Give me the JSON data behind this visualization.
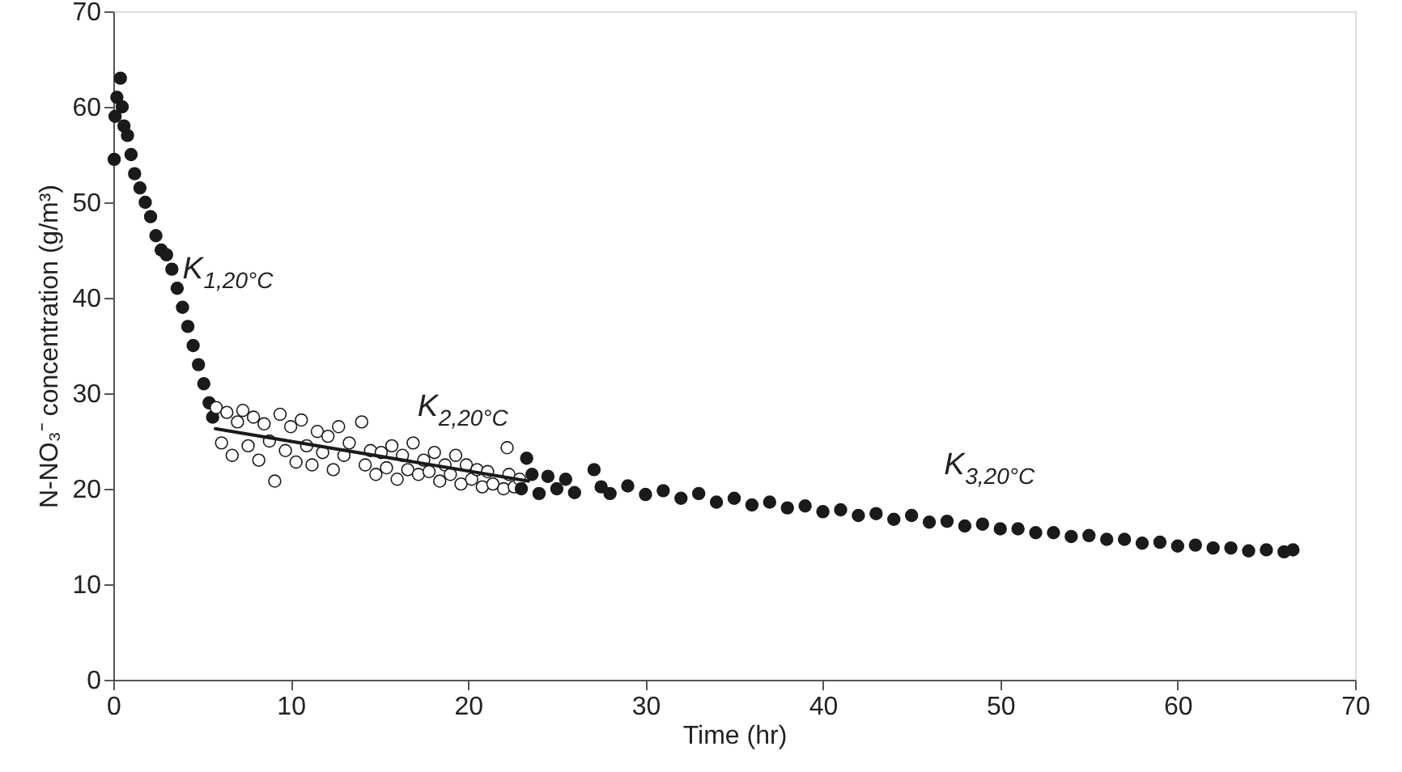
{
  "chart_data": {
    "type": "scatter",
    "xlabel": "Time (hr)",
    "ylabel": "N-NO₃⁻ concentration (g/m³)",
    "xlim": [
      0,
      70
    ],
    "ylim": [
      0,
      70
    ],
    "xticks": [
      0,
      10,
      20,
      30,
      40,
      50,
      60,
      70
    ],
    "yticks": [
      0,
      10,
      20,
      30,
      40,
      50,
      60,
      70
    ],
    "grid": false,
    "marker": "circle",
    "annotations": [
      {
        "text": "K$_{1,20°C}$",
        "x": 3.9,
        "y": 42
      },
      "K$_{2,20°C}$",
      "K$_{3,20°C}$"
    ],
    "series": [
      {
        "color": "#1a1a1a",
        "x": [
          0.05,
          0.1,
          0.2,
          0.3,
          0.4,
          0.5,
          0.6,
          0.8,
          1.0,
          1.2,
          1.5,
          1.8,
          2.1,
          2.4,
          2.7,
          3.0,
          3.3,
          3.6,
          3.9,
          4.2,
          4.5,
          4.8,
          5.1,
          5.4,
          5.6
        ],
        "values": [
          54.5,
          59,
          61,
          null,
          63,
          60,
          58,
          57,
          55,
          53,
          51.5,
          50,
          48.5,
          46.5,
          45,
          44.5,
          43,
          41,
          39,
          37,
          35,
          33,
          31,
          29,
          27.5
        ]
      },
      {
        "color": "#ffffff",
        "x": [
          5.8,
          6.1,
          6.4,
          6.7,
          7.0,
          7.3,
          7.6,
          7.9,
          8.2,
          8.5,
          8.8,
          9.1,
          9.4,
          9.7,
          10.0,
          10.3,
          10.6,
          10.9,
          11.2,
          11.5,
          11.8,
          12.1,
          12.4,
          12.7,
          13.0,
          13.3,
          14.0,
          14.2,
          14.5,
          14.8,
          15.1,
          15.4,
          15.7,
          16.0,
          16.3,
          16.6,
          16.9,
          17.2,
          17.5,
          17.8,
          18.1,
          18.4,
          18.7,
          19.0,
          19.3,
          19.6,
          19.9,
          20.2,
          20.5,
          20.8,
          21.1,
          21.4,
          22.2,
          22.0,
          22.3,
          22.6,
          22.9
        ],
        "values": [
          28.5,
          24.8,
          28.0,
          23.5,
          27.0,
          28.2,
          24.5,
          27.5,
          23.0,
          26.8,
          25.0,
          20.8,
          27.8,
          24.0,
          26.5,
          22.8,
          27.2,
          24.5,
          22.5,
          26.0,
          23.8,
          25.5,
          22.0,
          26.5,
          23.5,
          24.8,
          27.0,
          22.5,
          24.0,
          21.5,
          23.8,
          22.2,
          24.5,
          21.0,
          23.5,
          22.0,
          24.8,
          21.5,
          23.0,
          21.8,
          23.8,
          20.8,
          22.5,
          21.5,
          23.5,
          20.5,
          22.5,
          21.0,
          22.0,
          20.2,
          21.8,
          20.5,
          24.3,
          20.0,
          21.5,
          20.2,
          21.0
        ]
      },
      {
        "color": "#1a1a1a",
        "x": [
          23.0,
          23.3,
          23.6,
          24.0,
          24.5,
          25.0,
          25.5,
          26.0,
          27.1,
          27.5,
          28.0,
          29.0,
          30.0,
          31.0,
          32.0,
          33.0,
          34.0,
          35.0,
          36.0,
          37.0,
          38.0,
          39.0,
          40.0,
          41.0,
          42.0,
          43.0,
          44.0,
          45.0,
          46.0,
          47.0,
          48.0,
          49.0,
          50.0,
          51.0,
          52.0,
          53.0,
          54.0,
          55.0,
          56.0,
          57.0,
          58.0,
          59.0,
          60.0,
          61.0,
          62.0,
          63.0,
          64.0,
          65.0,
          66.0,
          66.5
        ],
        "values": [
          20.0,
          23.2,
          21.5,
          19.5,
          21.3,
          20.0,
          21.0,
          19.6,
          22.0,
          20.2,
          19.5,
          20.3,
          19.4,
          19.8,
          19.0,
          19.5,
          18.6,
          19.0,
          18.3,
          18.6,
          18.0,
          18.2,
          17.6,
          17.8,
          17.2,
          17.4,
          16.8,
          17.2,
          16.5,
          16.6,
          16.1,
          16.3,
          15.8,
          15.8,
          15.4,
          15.4,
          15.0,
          15.1,
          14.7,
          14.7,
          14.3,
          14.4,
          14.0,
          14.1,
          13.8,
          13.8,
          13.5,
          13.6,
          13.4,
          13.6
        ]
      },
      {
        "type": "line",
        "color": "#1a1a1a",
        "marker": "none",
        "line_style": "solid",
        "x": [
          5.75,
          23.4
        ],
        "values": [
          26.3,
          20.8
        ]
      }
    ]
  }
}
